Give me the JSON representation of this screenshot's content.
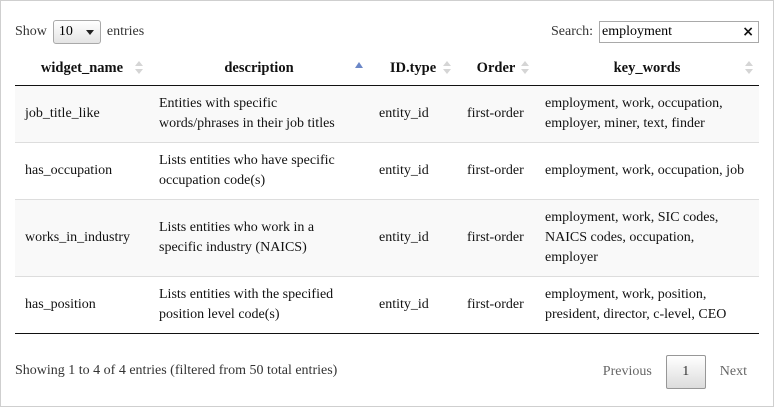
{
  "length": {
    "prefix": "Show",
    "value": "10",
    "suffix": "entries"
  },
  "search": {
    "label": "Search:",
    "value": "employment",
    "clear": "×"
  },
  "table": {
    "columns": [
      {
        "label": "widget_name",
        "sort": "none"
      },
      {
        "label": "description",
        "sort": "asc"
      },
      {
        "label": "ID.type",
        "sort": "none"
      },
      {
        "label": "Order",
        "sort": "none"
      },
      {
        "label": "key_words",
        "sort": "none"
      }
    ],
    "rows": [
      {
        "widget_name": "job_title_like",
        "description": "Entities with specific words/phrases in their job titles",
        "id_type": "entity_id",
        "order": "first-order",
        "key_words": "employment, work, occupation, employer, miner, text, finder"
      },
      {
        "widget_name": "has_occupation",
        "description": "Lists entities who have specific occupation code(s)",
        "id_type": "entity_id",
        "order": "first-order",
        "key_words": "employment, work, occupation, job"
      },
      {
        "widget_name": "works_in_industry",
        "description": "Lists entities who work in a specific industry (NAICS)",
        "id_type": "entity_id",
        "order": "first-order",
        "key_words": "employment, work, SIC codes, NAICS codes, occupation, employer"
      },
      {
        "widget_name": "has_position",
        "description": "Lists entities with the specified position level code(s)",
        "id_type": "entity_id",
        "order": "first-order",
        "key_words": "employment, work, position, president, director, c-level, CEO"
      }
    ]
  },
  "info": "Showing 1 to 4 of 4 entries (filtered from 50 total entries)",
  "pagination": {
    "previous": "Previous",
    "current": "1",
    "next": "Next"
  }
}
